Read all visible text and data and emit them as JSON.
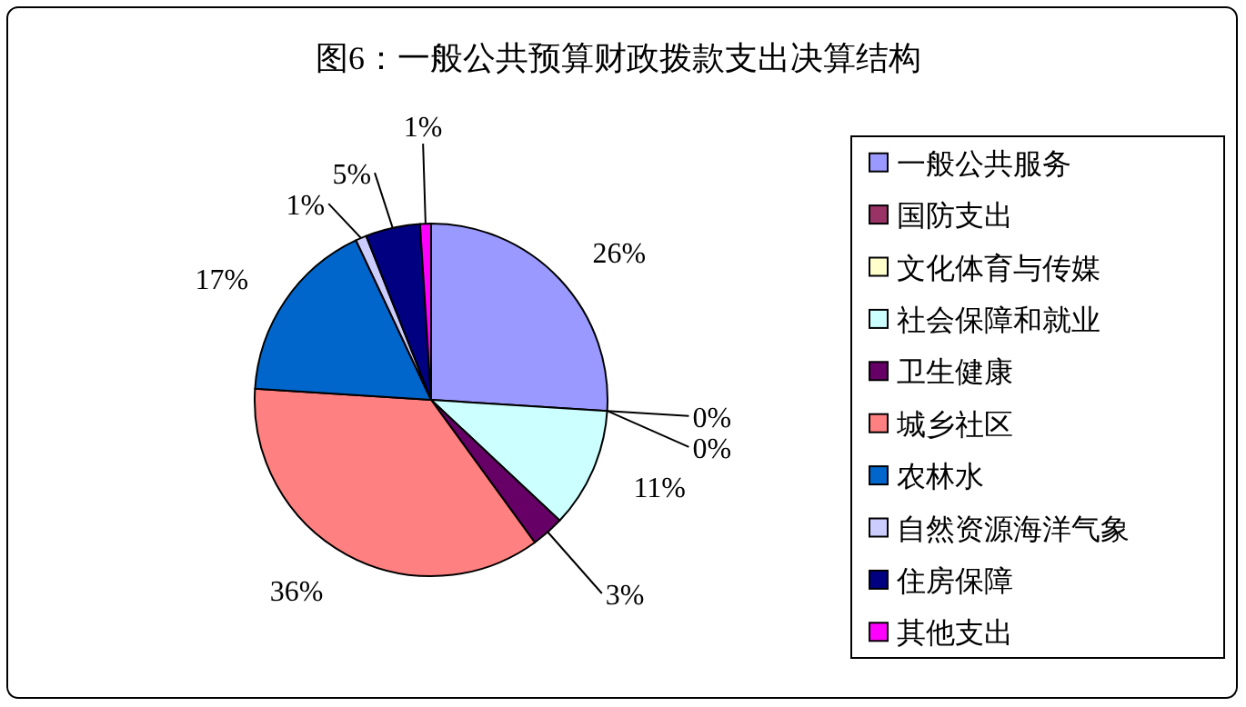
{
  "chart_data": {
    "type": "pie",
    "title": "图6：一般公共预算财政拨款支出决算结构",
    "categories": [
      "一般公共服务",
      "国防支出",
      "文化体育与传媒",
      "社会保障和就业",
      "卫生健康",
      "城乡社区",
      "农林水",
      "自然资源海洋气象",
      "住房保障",
      "其他支出"
    ],
    "values": [
      26,
      0,
      0,
      11,
      3,
      36,
      17,
      1,
      5,
      1
    ],
    "value_labels": [
      "26%",
      "0%",
      "0%",
      "11%",
      "3%",
      "36%",
      "17%",
      "1%",
      "5%",
      "1%"
    ],
    "colors": [
      "#9999ff",
      "#993366",
      "#ffffcc",
      "#ccffff",
      "#660066",
      "#ff8080",
      "#0066cc",
      "#ccccff",
      "#000080",
      "#ff00ff"
    ],
    "legend": "right"
  }
}
